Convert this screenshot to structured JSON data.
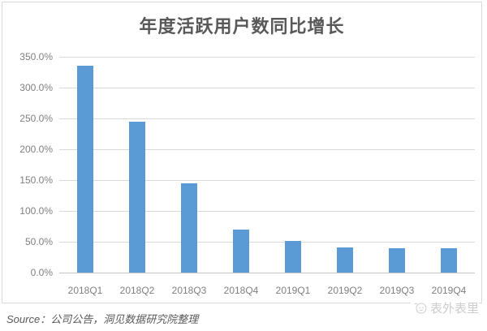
{
  "chart_data": {
    "type": "bar",
    "title": "年度活跃用户数同比增长",
    "categories": [
      "2018Q1",
      "2018Q2",
      "2018Q3",
      "2018Q4",
      "2019Q1",
      "2019Q2",
      "2019Q3",
      "2019Q4"
    ],
    "values": [
      335,
      245,
      145,
      70,
      51,
      41,
      40,
      40
    ],
    "unit": "%",
    "xlabel": "",
    "ylabel": "",
    "ylim": [
      0,
      350
    ],
    "y_tick_step": 50,
    "y_ticks": [
      "350.0%",
      "300.0%",
      "250.0%",
      "200.0%",
      "150.0%",
      "100.0%",
      "50.0%",
      "0.0%"
    ],
    "grid": true,
    "legend": false,
    "bar_color": "#5B9BD5",
    "grid_color": "#d9d9d9",
    "axis_label_color": "#7f7f7f",
    "title_color": "#595959"
  },
  "footer": {
    "source": "Source：公司公告，洞见数据研究院整理",
    "watermark": "表外表里"
  }
}
